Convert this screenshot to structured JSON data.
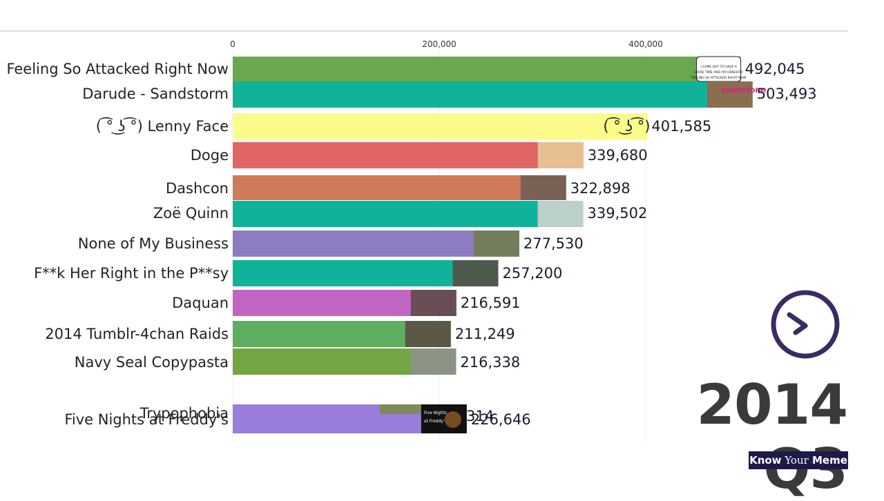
{
  "chart_data": {
    "type": "bar",
    "orientation": "horizontal",
    "period": "2014 Q3",
    "x_ticks": [
      0,
      200000,
      400000
    ],
    "x_tick_labels": [
      "0",
      "200,000",
      "400,000"
    ],
    "xlim": [
      0,
      600000
    ],
    "categories": [
      "Feeling So Attacked Right Now",
      "Darude - Sandstorm",
      "( ͡° ͜ʖ ͡°) Lenny Face",
      "Doge",
      "Dashcon",
      "Zoë Quinn",
      "None of My Business",
      "F**k Her Right in the P**sy",
      "Daquan",
      "2014 Tumblr-4chan Raids",
      "Navy Seal Copypasta",
      "Trypophobia",
      "Five Nights at Freddy's"
    ],
    "values": [
      492045,
      503493,
      401585,
      339680,
      322898,
      339502,
      277530,
      257200,
      216591,
      211249,
      216338,
      null,
      226646
    ],
    "value_labels": [
      "492,045",
      "503,493",
      "401,585",
      "339,680",
      "322,898",
      "339,502",
      "277,530",
      "257,200",
      "216,591",
      "211,249",
      "216,338",
      "",
      "226,646"
    ],
    "colors": [
      "#6aa84f",
      "#10b39a",
      "#fbfb8a",
      "#e06666",
      "#cf7a58",
      "#10b39a",
      "#8e7cc3",
      "#10b39a",
      "#c265c2",
      "#5fae5f",
      "#74a545",
      "#6aa84f",
      "#9a7cdb"
    ],
    "thumbnail_icons": [
      "speech-bubble-thumbnail",
      "sandstorm-thumbnail",
      "lenny-face-thumbnail",
      "doge-thumbnail",
      "dashcon-thumbnail",
      "zoe-quinn-thumbnail",
      "kermit-tea-thumbnail",
      "fhrip-thumbnail",
      "daquan-thumbnail",
      "raids-thumbnail",
      "navy-seal-thumbnail",
      "trypophobia-thumbnail",
      "freddy-thumbnail"
    ],
    "bubble_text": "I CAME OUT TO HAVE A GOOD TIME AND I'M HONESTLY FEELING SO ATTACKED RIGHT NOW",
    "sandstorm_text": "SANDSTORM",
    "fnaf_text": "Five Nights at Freddy's"
  },
  "brand": {
    "part1": "Know",
    "part2": " Your",
    "part3": " Meme"
  },
  "overlays": {
    "timer_icon": "clock-icon"
  }
}
